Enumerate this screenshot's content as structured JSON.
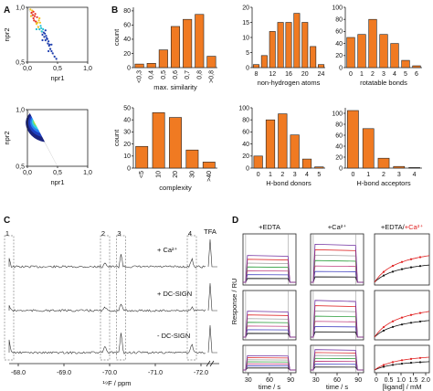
{
  "panels": {
    "a": "A",
    "b": "B",
    "c": "C",
    "d": "D"
  },
  "chart_data": [
    {
      "id": "A-top",
      "type": "scatter",
      "xlabel": "npr1",
      "ylabel": "npr2",
      "xticks": [
        "0,0",
        "0,5",
        "1,0"
      ],
      "yticks": [
        "0,5",
        "1,0"
      ],
      "xlim": [
        0,
        1
      ],
      "ylim": [
        0.5,
        1
      ],
      "points": [
        [
          0.05,
          0.98
        ],
        [
          0.07,
          0.95
        ],
        [
          0.09,
          0.93
        ],
        [
          0.1,
          0.9
        ],
        [
          0.12,
          0.92
        ],
        [
          0.08,
          0.97
        ],
        [
          0.14,
          0.87
        ],
        [
          0.15,
          0.85
        ],
        [
          0.17,
          0.86
        ],
        [
          0.18,
          0.82
        ],
        [
          0.2,
          0.8
        ],
        [
          0.22,
          0.83
        ],
        [
          0.24,
          0.78
        ],
        [
          0.25,
          0.75
        ],
        [
          0.27,
          0.77
        ],
        [
          0.28,
          0.73
        ],
        [
          0.3,
          0.7
        ],
        [
          0.32,
          0.72
        ],
        [
          0.34,
          0.67
        ],
        [
          0.36,
          0.65
        ],
        [
          0.38,
          0.62
        ],
        [
          0.4,
          0.6
        ],
        [
          0.42,
          0.58
        ],
        [
          0.45,
          0.55
        ],
        [
          0.48,
          0.53
        ],
        [
          0.11,
          0.88
        ],
        [
          0.13,
          0.94
        ],
        [
          0.16,
          0.91
        ],
        [
          0.19,
          0.88
        ],
        [
          0.21,
          0.86
        ],
        [
          0.23,
          0.81
        ],
        [
          0.26,
          0.8
        ],
        [
          0.29,
          0.76
        ],
        [
          0.31,
          0.74
        ],
        [
          0.33,
          0.71
        ],
        [
          0.35,
          0.69
        ],
        [
          0.37,
          0.66
        ],
        [
          0.06,
          0.92
        ],
        [
          0.1,
          0.96
        ],
        [
          0.2,
          0.9
        ],
        [
          0.3,
          0.79
        ],
        [
          0.4,
          0.66
        ],
        [
          0.15,
          0.8
        ],
        [
          0.25,
          0.7
        ],
        [
          0.35,
          0.6
        ]
      ]
    },
    {
      "id": "A-bottom",
      "type": "heatmap",
      "xlabel": "npr1",
      "ylabel": "npr2",
      "xticks": [
        "0,0",
        "0,5",
        "1,0"
      ],
      "yticks": [
        "0,5",
        "1,0"
      ],
      "xlim": [
        0,
        1
      ],
      "ylim": [
        0.5,
        1
      ],
      "hotspot": [
        0.15,
        0.9
      ]
    },
    {
      "id": "B-1",
      "type": "bar",
      "xlabel": "max. similarity",
      "ylabel": "count",
      "categories": [
        "<0,3",
        "0,4",
        "0,5",
        "0,6",
        "0,7",
        "0,8",
        ">0,8"
      ],
      "values": [
        5,
        6,
        25,
        58,
        68,
        75,
        16
      ],
      "yticks": [
        0,
        20,
        40,
        60,
        80
      ],
      "ylim": [
        0,
        85
      ]
    },
    {
      "id": "B-2",
      "type": "bar",
      "xlabel": "non-hydrogen atoms",
      "ylabel": "",
      "categories": [
        "8",
        "",
        "12",
        "",
        "16",
        "",
        "20",
        "",
        "24"
      ],
      "values": [
        1,
        4,
        12,
        15,
        15,
        18,
        15,
        7,
        1
      ],
      "yticks": [
        0,
        5,
        10,
        15,
        20
      ],
      "ylim": [
        0,
        20
      ]
    },
    {
      "id": "B-3",
      "type": "bar",
      "xlabel": "rotatable bonds",
      "ylabel": "",
      "categories": [
        "0",
        "1",
        "2",
        "3",
        "4",
        "5",
        "6"
      ],
      "values": [
        50,
        55,
        80,
        55,
        40,
        12,
        3
      ],
      "yticks": [
        0,
        20,
        40,
        60,
        80,
        100
      ],
      "ylim": [
        0,
        100
      ]
    },
    {
      "id": "B-4",
      "type": "bar",
      "xlabel": "complexity",
      "ylabel": "count",
      "categories": [
        "<5",
        "10",
        "20",
        "30",
        ">40"
      ],
      "values": [
        18,
        46,
        42,
        15,
        5
      ],
      "yticks": [
        0,
        10,
        20,
        30,
        40,
        50
      ],
      "ylim": [
        0,
        50
      ]
    },
    {
      "id": "B-5",
      "type": "bar",
      "xlabel": "H-bond donors",
      "ylabel": "",
      "categories": [
        "0",
        "1",
        "2",
        "3",
        "4",
        "5"
      ],
      "values": [
        20,
        80,
        90,
        55,
        15,
        2
      ],
      "yticks": [
        0,
        20,
        40,
        60,
        80,
        100
      ],
      "ylim": [
        0,
        100
      ]
    },
    {
      "id": "B-6",
      "type": "bar",
      "xlabel": "H-bond acceptors",
      "ylabel": "",
      "categories": [
        "0",
        "1",
        "2",
        "3",
        "4"
      ],
      "values": [
        105,
        72,
        18,
        3,
        1
      ],
      "yticks": [
        0,
        20,
        40,
        60,
        80,
        100
      ],
      "ylim": [
        0,
        110
      ]
    },
    {
      "id": "C",
      "type": "line",
      "xlabel": "¹⁹F / ppm",
      "xticks": [
        "-68.0",
        "-69.0",
        "-70.0",
        "-71.0",
        "-72.0"
      ],
      "xlim": [
        -67.8,
        -72.4
      ],
      "peak_labels": [
        "1",
        "2",
        "3",
        "4"
      ],
      "peaks_ppm": [
        -67.8,
        -69.9,
        -70.25,
        -71.8
      ],
      "tfa_label": "TFA",
      "series": [
        {
          "name": "+ Ca²⁺",
          "heights": [
            10,
            6,
            14,
            10
          ]
        },
        {
          "name": "+ DC-SIGN",
          "heights": [
            6,
            4,
            8,
            4
          ]
        },
        {
          "name": "- DC-SIGN",
          "heights": [
            14,
            8,
            22,
            12
          ]
        }
      ]
    },
    {
      "id": "D",
      "type": "line",
      "ylabel": "Response / RU",
      "col_titles": [
        "+EDTA",
        "+Ca²⁺"
      ],
      "col3_title_a": "+EDTA/",
      "col3_title_b": "+Ca²⁺",
      "xlabel_time": "time / s",
      "xlabel_ligand": "[ligand] / mM",
      "time_ticks": [
        "30",
        "60",
        "90"
      ],
      "ligand_ticks": [
        "0",
        "0.5",
        "1.0",
        "1.5",
        "2.0"
      ]
    }
  ],
  "colors": {
    "bar": "#f07a22",
    "red": "#e02020",
    "black": "#111111"
  }
}
